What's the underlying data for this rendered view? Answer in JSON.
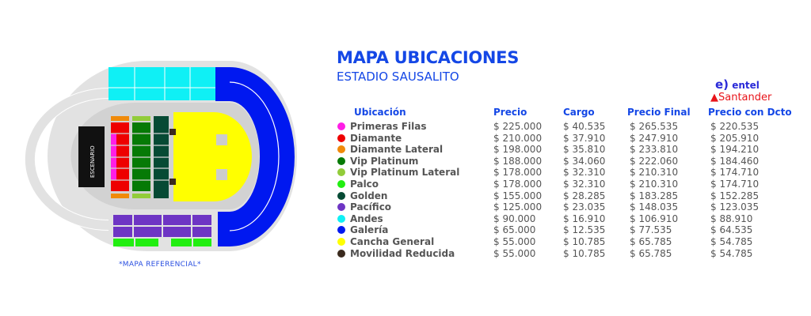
{
  "title": "MAPA UBICACIONES",
  "subtitle": "ESTADIO SAUSALITO",
  "map": {
    "stage_label": "ESCENARIO",
    "note": "*MAPA REFERENCIAL*"
  },
  "sponsors": {
    "entel": "entel",
    "santander": "Santander"
  },
  "headers": {
    "location": "Ubicación",
    "price": "Precio",
    "fee": "Cargo",
    "final": "Precio Final",
    "discount": "Precio con Dcto"
  },
  "rows": [
    {
      "name": "Primeras Filas",
      "color": "#ff1ee6",
      "price": "$ 225.000",
      "fee": "$ 40.535",
      "final": "$ 265.535",
      "discount": "$ 220.535"
    },
    {
      "name": "Diamante",
      "color": "#ee0000",
      "price": "$ 210.000",
      "fee": "$ 37.910",
      "final": "$ 247.910",
      "discount": "$ 205.910"
    },
    {
      "name": "Diamante Lateral",
      "color": "#f08a0a",
      "price": "$ 198.000",
      "fee": "$ 35.810",
      "final": "$ 233.810",
      "discount": "$ 194.210"
    },
    {
      "name": "Vip Platinum",
      "color": "#067a06",
      "price": "$ 188.000",
      "fee": "$ 34.060",
      "final": "$ 222.060",
      "discount": "$ 184.460"
    },
    {
      "name": "Vip Platinum Lateral",
      "color": "#92cc3a",
      "price": "$ 178.000",
      "fee": "$ 32.310",
      "final": "$ 210.310",
      "discount": "$ 174.710"
    },
    {
      "name": "Palco",
      "color": "#22ee11",
      "price": "$ 178.000",
      "fee": "$ 32.310",
      "final": "$ 210.310",
      "discount": "$ 174.710"
    },
    {
      "name": "Golden",
      "color": "#064a34",
      "price": "$ 155.000",
      "fee": "$ 28.285",
      "final": "$ 183.285",
      "discount": "$ 152.285"
    },
    {
      "name": "Pacífico",
      "color": "#6e35c4",
      "price": "$ 125.000",
      "fee": "$ 23.035",
      "final": "$ 148.035",
      "discount": "$ 123.035"
    },
    {
      "name": "Andes",
      "color": "#0ff0f5",
      "price": "$ 90.000",
      "fee": "$ 16.910",
      "final": "$ 106.910",
      "discount": "$ 88.910"
    },
    {
      "name": "Galería",
      "color": "#0018f0",
      "price": "$ 65.000",
      "fee": "$ 12.535",
      "final": "$ 77.535",
      "discount": "$ 64.535"
    },
    {
      "name": "Cancha General",
      "color": "#ffff00",
      "price": "$ 55.000",
      "fee": "$ 10.785",
      "final": "$ 65.785",
      "discount": "$ 54.785"
    },
    {
      "name": "Movilidad Reducida",
      "color": "#3a2a1e",
      "price": "$ 55.000",
      "fee": "$ 10.785",
      "final": "$ 65.785",
      "discount": "$ 54.785"
    }
  ]
}
